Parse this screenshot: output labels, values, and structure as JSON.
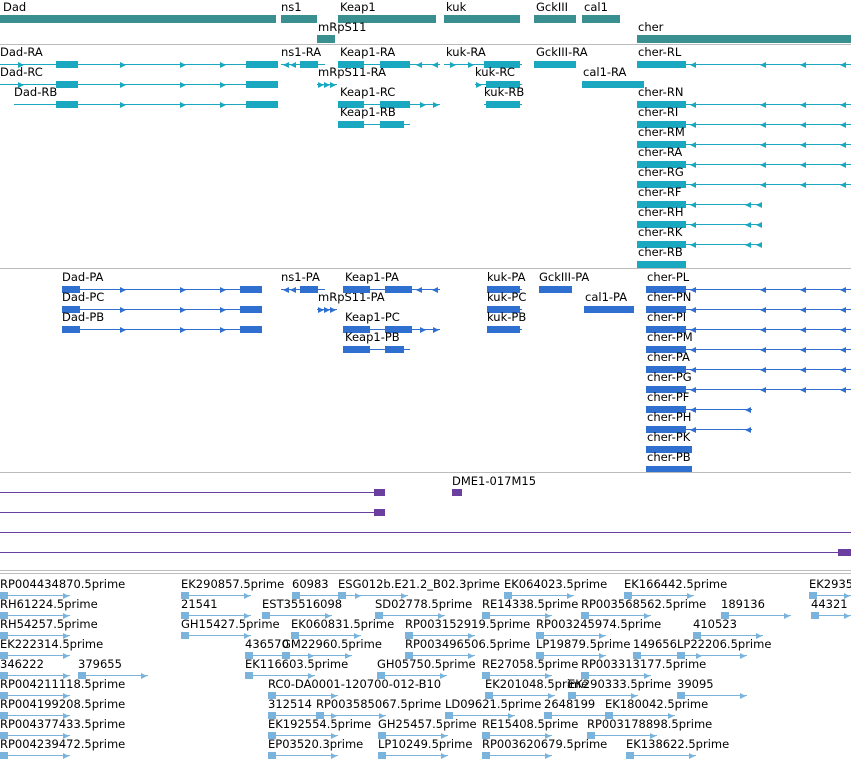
{
  "colors": {
    "genes": "#3a9090",
    "flybase_transcripts": "#1aa8c0",
    "refseq_transcripts": "#2f6fd0",
    "clones": "#6a3fa0",
    "ests": "#7ab4dc",
    "separator": "#bcbcbc"
  },
  "genes_track": {
    "genes": [
      "Dad",
      "ns1",
      "Keap1",
      "kuk",
      "GckIII",
      "cal1",
      "mRpS11",
      "cher"
    ]
  },
  "flybase_track": {
    "transcripts": [
      "Dad-RA",
      "Dad-RC",
      "Dad-RB",
      "ns1-RA",
      "mRpS11-RA",
      "Keap1-RA",
      "Keap1-RC",
      "Keap1-RB",
      "kuk-RA",
      "kuk-RC",
      "kuk-RB",
      "GckIII-RA",
      "cal1-RA",
      "cher-RL",
      "cher-RN",
      "cher-RI",
      "cher-RM",
      "cher-RA",
      "cher-RG",
      "cher-RF",
      "cher-RH",
      "cher-RK",
      "cher-RB"
    ]
  },
  "refseq_track": {
    "transcripts": [
      "Dad-PA",
      "Dad-PC",
      "Dad-PB",
      "ns1-PA",
      "mRpS11-PA",
      "Keap1-PA",
      "Keap1-PC",
      "Keap1-PB",
      "kuk-PA",
      "kuk-PC",
      "kuk-PB",
      "GckIII-PA",
      "cal1-PA",
      "cher-PL",
      "cher-PN",
      "cher-PI",
      "cher-PM",
      "cher-PA",
      "cher-PG",
      "cher-PF",
      "cher-PH",
      "cher-PK",
      "cher-PB"
    ]
  },
  "clone_track": {
    "clones": [
      "DME1-017M15"
    ]
  },
  "est_track": {
    "ests": [
      "RP004434870.5prime",
      "EK290857.5prime",
      "60983",
      "ESG012b.E21.2_B02.3prime",
      "EK064023.5prime",
      "EK166442.5prime",
      "EK2935",
      "RH61224.5prime",
      "21541",
      "EST35516098",
      "SD02778.5prime",
      "RE14338.5prime",
      "RP003568562.5prime",
      "189136",
      "44321",
      "RH54257.5prime",
      "GH15427.5prime",
      "EK060831.5prime",
      "RP003152919.5prime",
      "RP003245974.5prime",
      "410523",
      "EK222314.5prime",
      "436570",
      "GM22960.5prime",
      "RP003496506.5prime",
      "LP19879.5prime",
      "149656",
      "LP22206.5prime",
      "346222",
      "379655",
      "EK116603.5prime",
      "GH05750.5prime",
      "RE27058.5prime",
      "RP003313177.5prime",
      "RP004211118.5prime",
      "RC0-DA0001-120700-012-B10",
      "EK201048.5prime",
      "EK290333.5prime",
      "39095",
      "RP004199208.5prime",
      "312514",
      "RP003585067.5prime",
      "LD09621.5prime",
      "2648199",
      "EK180042.5prime",
      "RP004377433.5prime",
      "EK192554.5prime",
      "GH25457.5prime",
      "RE15408.5prime",
      "RP003178898.5prime",
      "RP004239472.5prime",
      "EP03520.3prime",
      "LP10249.5prime",
      "RP003620679.5prime",
      "EK138622.5prime"
    ]
  }
}
